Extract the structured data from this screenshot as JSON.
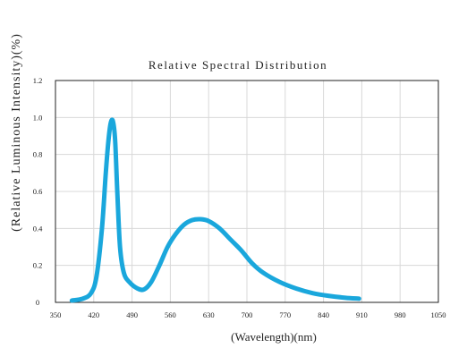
{
  "chart_data": {
    "type": "line",
    "title": "Relative Spectral Distribution",
    "xlabel": "(Wavelength)(nm)",
    "ylabel": "(Relative Luminous Intensity)(%)",
    "xlim": [
      350,
      1050
    ],
    "ylim": [
      0,
      1.2
    ],
    "x_ticks": [
      "350",
      "420",
      "490",
      "560",
      "630",
      "700",
      "770",
      "840",
      "910",
      "980",
      "1050"
    ],
    "y_ticks": [
      "0",
      "0.2",
      "0.4",
      "0.6",
      "0.8",
      "1.0",
      "1.2"
    ],
    "grid": true,
    "line_color": "#1aa7dc",
    "series": [
      {
        "x": [
          380,
          400,
          415,
          425,
          435,
          442,
          447,
          451,
          455,
          459,
          463,
          468,
          475,
          485,
          500,
          512,
          525,
          540,
          555,
          570,
          585,
          600,
          615,
          630,
          650,
          670,
          690,
          710,
          730,
          760,
          790,
          820,
          850,
          880,
          905
        ],
        "y": [
          0.01,
          0.02,
          0.05,
          0.14,
          0.4,
          0.7,
          0.88,
          0.97,
          0.98,
          0.88,
          0.6,
          0.3,
          0.16,
          0.11,
          0.075,
          0.07,
          0.11,
          0.2,
          0.3,
          0.37,
          0.42,
          0.445,
          0.45,
          0.44,
          0.4,
          0.34,
          0.28,
          0.21,
          0.16,
          0.11,
          0.075,
          0.05,
          0.035,
          0.025,
          0.02
        ]
      }
    ]
  }
}
